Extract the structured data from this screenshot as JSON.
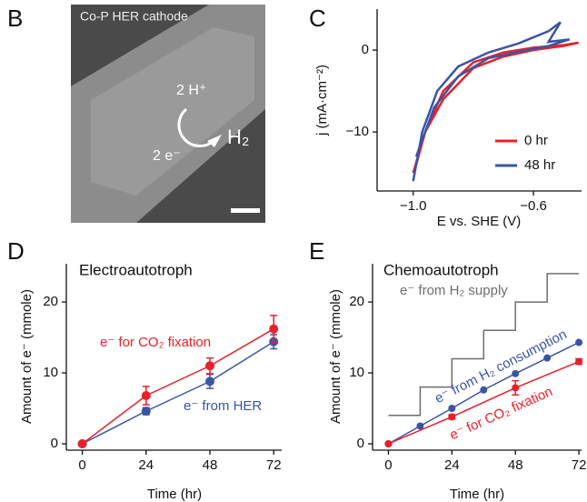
{
  "image_panel": {
    "label": "B",
    "caption": "Co-P HER cathode",
    "labels": [
      "2 H⁺",
      "H₂",
      "2 e⁻"
    ]
  },
  "chart_data": [
    {
      "type": "line",
      "panel_label": "C",
      "xlabel": "E vs. SHE (V)",
      "ylabel": "j (mA·cm⁻²)",
      "xlim": [
        -1.12,
        -0.44
      ],
      "xticks": [
        {
          "value": -1.0,
          "label": "−1.0"
        },
        {
          "value": -0.6,
          "label": "−0.6"
        }
      ],
      "ylim": [
        -17.2,
        5
      ],
      "yticks": [
        0,
        {
          "value": -10,
          "label": "−10"
        }
      ],
      "legend": "lower right",
      "series": [
        {
          "name": "0 hr",
          "color": "#e8202a",
          "x": [
            -1.0,
            -0.96,
            -0.9,
            -0.8,
            -0.7,
            -0.6,
            -0.5,
            -0.45,
            -0.5,
            -0.6,
            -0.7,
            -0.8,
            -0.9,
            -0.96,
            -0.99
          ],
          "values": [
            -15,
            -10,
            -5,
            -1.5,
            -0.3,
            0.3,
            0.6,
            0.9,
            0.5,
            0,
            -0.8,
            -2.2,
            -6,
            -10,
            -14
          ]
        },
        {
          "name": "48 hr",
          "color": "#3a55a4",
          "x": [
            -1.0,
            -0.97,
            -0.92,
            -0.85,
            -0.75,
            -0.65,
            -0.55,
            -0.51,
            -0.55,
            -0.48,
            -0.55,
            -0.65,
            -0.75,
            -0.85,
            -0.93,
            -0.99
          ],
          "values": [
            -16,
            -10,
            -5,
            -2,
            -0.3,
            0.8,
            2.3,
            3.4,
            1.0,
            1.3,
            0.5,
            -0.2,
            -1,
            -3.2,
            -7,
            -13
          ]
        }
      ]
    },
    {
      "type": "errorline",
      "panel_label": "D",
      "title": "Electroautotroph",
      "xlabel": "Time (hr)",
      "ylabel": "Amount of e⁻ (mmole)",
      "xlim": [
        -6,
        75
      ],
      "xticks": [
        0,
        24,
        48,
        72
      ],
      "ylim": [
        -0.9,
        25.4
      ],
      "yticks": [
        0,
        10,
        20
      ],
      "series": [
        {
          "name": "e⁻ from HER",
          "color": "#3a55a4",
          "x": [
            0,
            24,
            48,
            72
          ],
          "values": [
            0,
            4.6,
            8.8,
            14.4
          ],
          "errors": [
            0,
            0.5,
            1,
            1
          ]
        },
        {
          "name": "e⁻ for CO₂ fixation",
          "color": "#e8202a",
          "x": [
            0,
            24,
            48,
            72
          ],
          "values": [
            0,
            6.8,
            11,
            16.2
          ],
          "errors": [
            0,
            1.3,
            1.1,
            1.9
          ]
        }
      ]
    },
    {
      "type": "errorline",
      "panel_label": "E",
      "title": "Chemoautotroph",
      "xlabel": "Time (hr)",
      "ylabel": "Amount of e⁻ (mmole)",
      "xlim": [
        -6,
        73
      ],
      "xticks": [
        0,
        24,
        48,
        72
      ],
      "ylim": [
        -0.9,
        25.4
      ],
      "yticks": [
        0,
        10,
        20
      ],
      "series": [
        {
          "name": "e⁻ from H₂ supply",
          "color": "#6d6e70",
          "x": [
            0,
            12,
            12,
            24,
            24,
            36,
            36,
            48,
            48,
            60,
            60,
            72
          ],
          "values": [
            4,
            4,
            8,
            8,
            12,
            12,
            16,
            16,
            20,
            20,
            24,
            24
          ]
        },
        {
          "name": "e⁻ from H₂ consumption",
          "color": "#3a55a4",
          "x": [
            0,
            12,
            24,
            36,
            48,
            60,
            72
          ],
          "values": [
            0,
            2.5,
            5,
            7.6,
            9.9,
            12.1,
            14.3
          ]
        },
        {
          "name": "e⁻ for CO₂ fixation",
          "color": "#e8202a",
          "x": [
            0,
            24,
            48,
            72
          ],
          "values": [
            0,
            3.8,
            7.9,
            11.6
          ],
          "errors": [
            0,
            0.3,
            1,
            0.4
          ]
        }
      ]
    }
  ]
}
